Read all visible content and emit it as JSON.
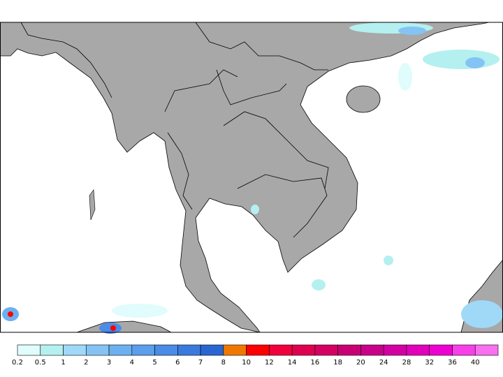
{
  "colorbar": {
    "ticks": [
      0.2,
      0.5,
      1,
      2,
      3,
      4,
      5,
      6,
      7,
      8,
      10,
      12,
      14,
      16,
      18,
      20,
      24,
      28,
      32,
      36,
      40
    ],
    "colors": [
      "#e0fcfc",
      "#b4f0f0",
      "#a0d8f8",
      "#84c4f4",
      "#6cb0f0",
      "#5a9eec",
      "#4a8ce6",
      "#3a7ade",
      "#2a66d2",
      "#f07800",
      "#ff0000",
      "#f0003c",
      "#e00050",
      "#d40062",
      "#c80074",
      "#c8008a",
      "#d400a2",
      "#e200ba",
      "#ee00d2",
      "#f840e8",
      "#f870f0"
    ]
  }
}
